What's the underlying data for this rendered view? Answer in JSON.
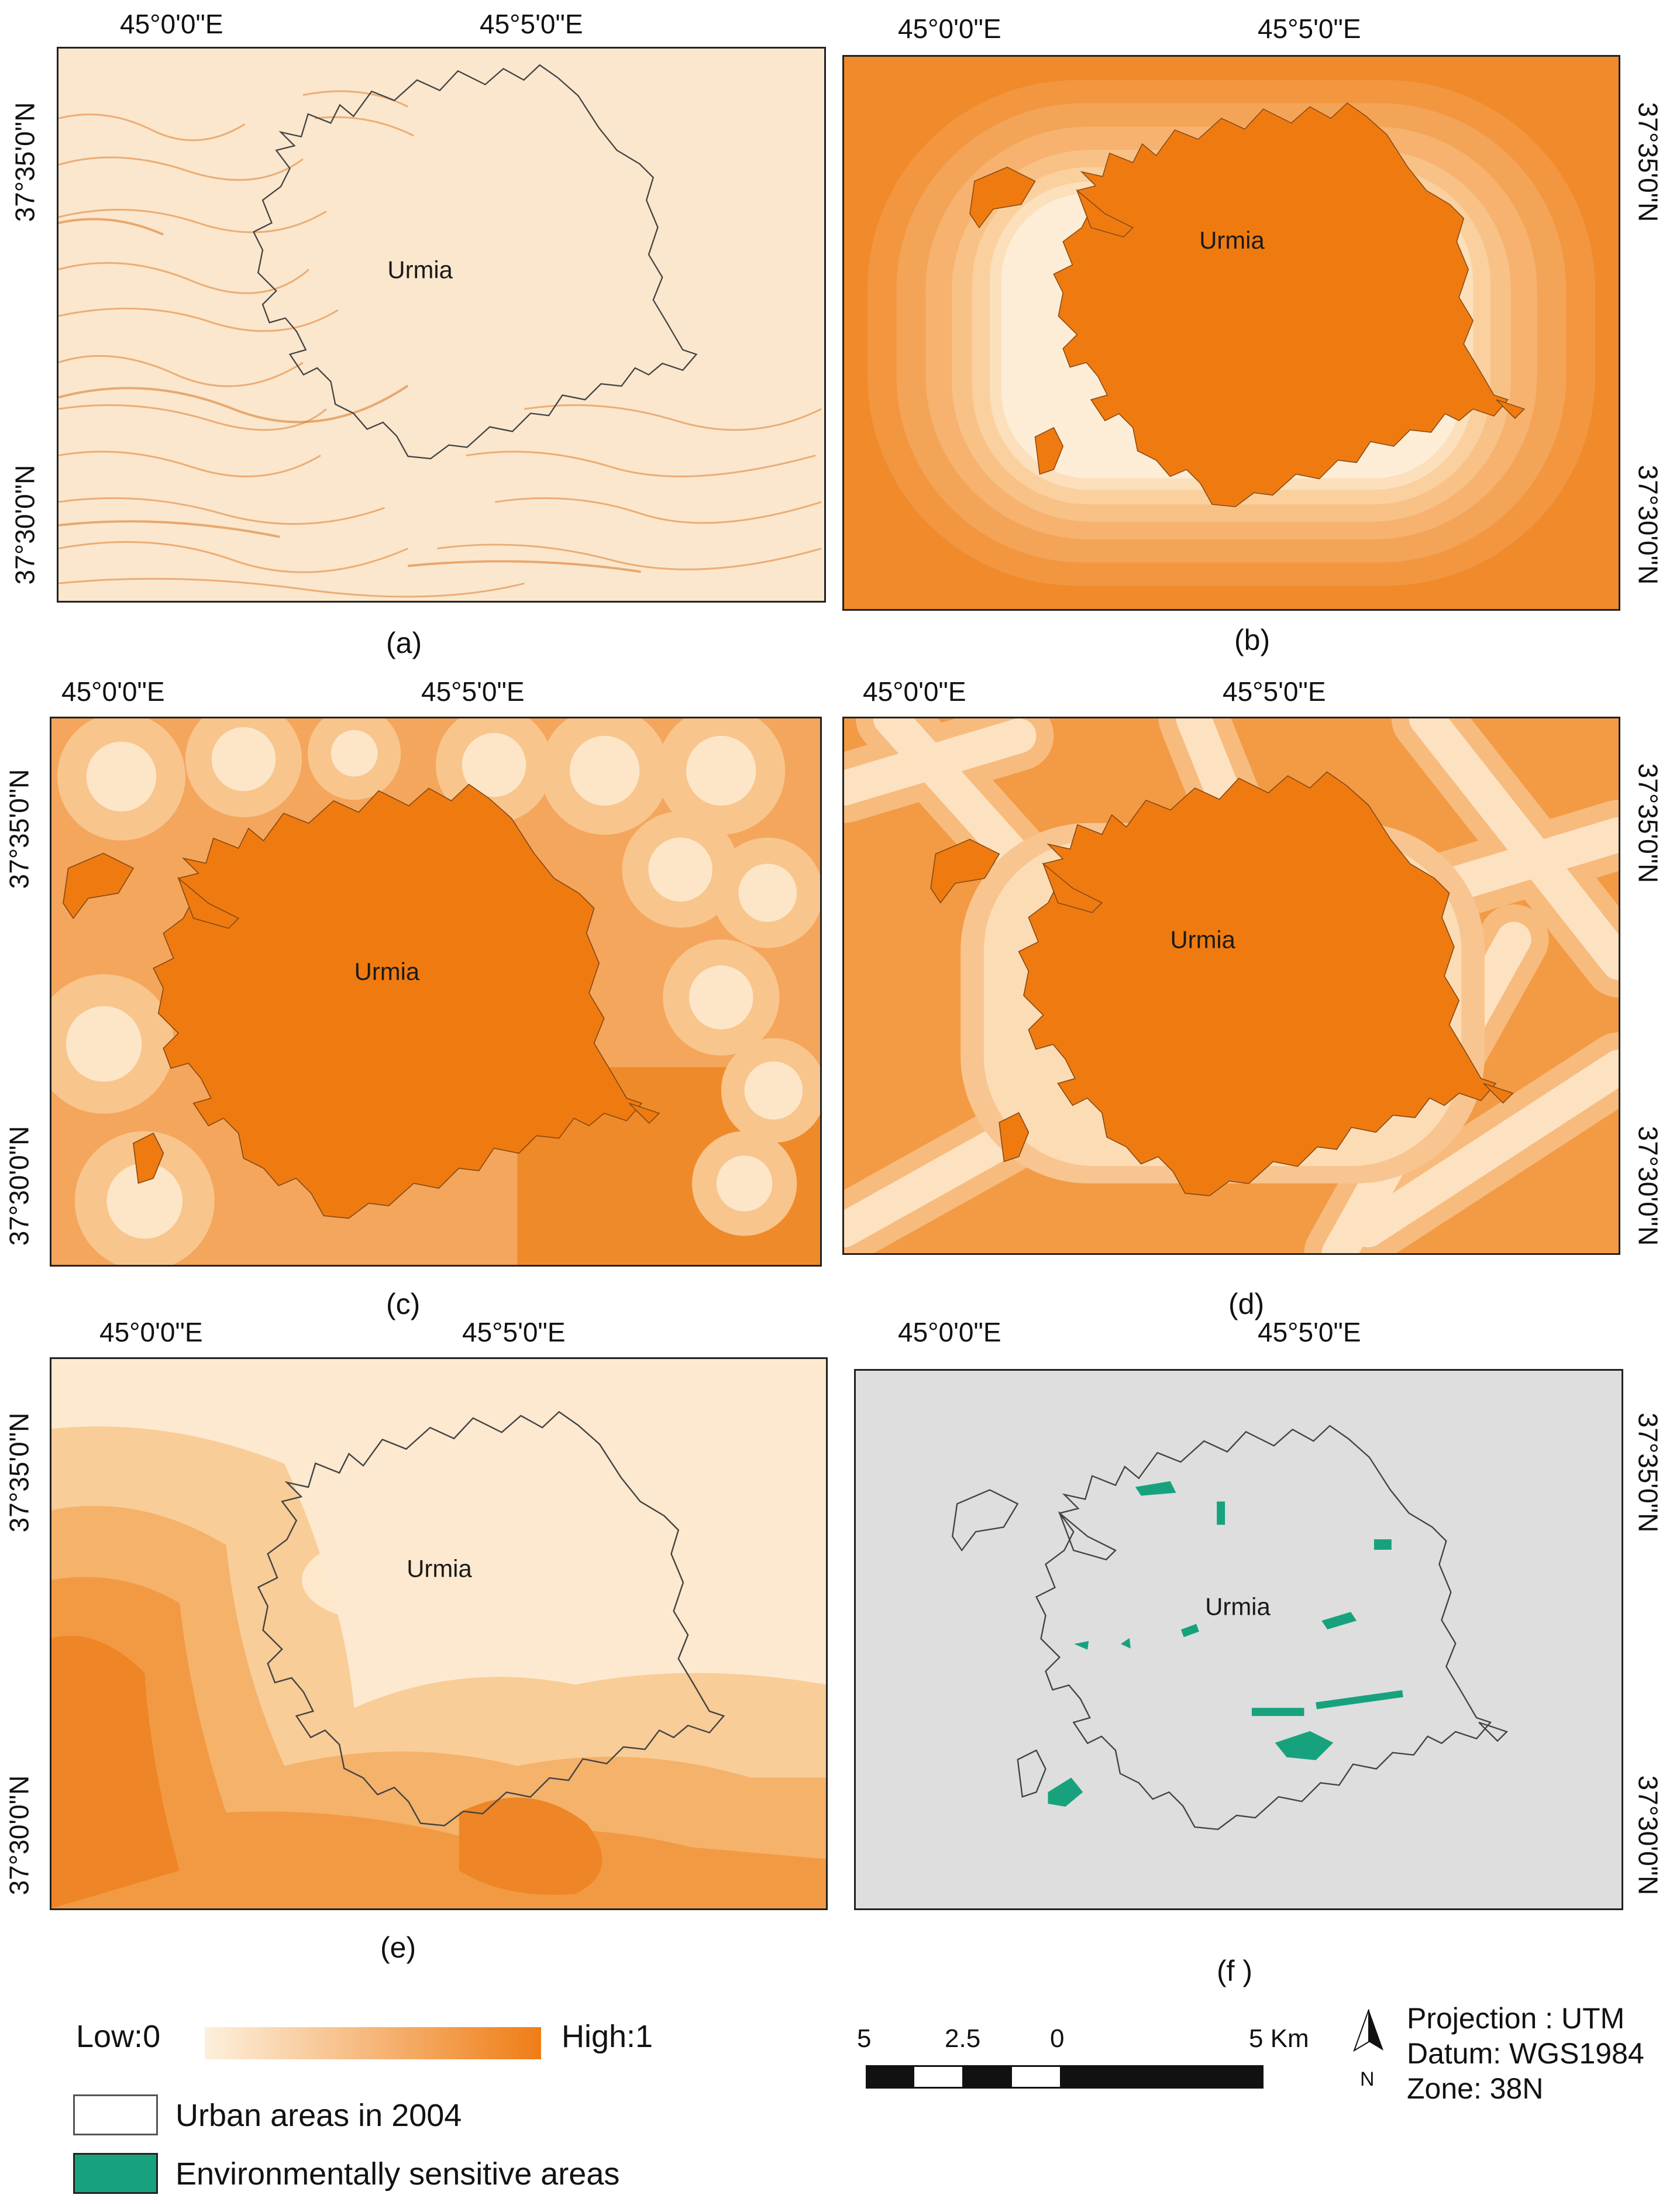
{
  "lon_ticks": [
    "45°0'0\"E",
    "45°5'0\"E"
  ],
  "lat_ticks": [
    "37°35'0\"N",
    "37°30'0\"N"
  ],
  "city_label": "Urmia",
  "panels": [
    {
      "id": "a",
      "caption": "(a)",
      "layer": "slope-texture",
      "outline_only": true
    },
    {
      "id": "b",
      "caption": "(b)",
      "layer": "distance-rings",
      "outline_only": false
    },
    {
      "id": "c",
      "caption": "(c)",
      "layer": "point-buffers",
      "outline_only": false
    },
    {
      "id": "d",
      "caption": "(d)",
      "layer": "road-buffers",
      "outline_only": false
    },
    {
      "id": "e",
      "caption": "(e)",
      "layer": "elevation-zones",
      "outline_only": true
    },
    {
      "id": "f",
      "caption": "(f )",
      "layer": "sensitive-areas",
      "outline_only": true
    }
  ],
  "legend": {
    "low_label": "Low:0",
    "high_label": "High:1",
    "urban_label": "Urban areas in 2004",
    "sensitive_label": "Environmentally sensitive areas"
  },
  "scale_bar": {
    "labels": [
      "5",
      "2.5",
      "0",
      "5 Km"
    ]
  },
  "map_info": {
    "projection": "Projection : UTM",
    "datum": "Datum: WGS1984",
    "zone": "Zone: 38N",
    "north_label": "N"
  },
  "colors": {
    "low": "#fbe6c8",
    "high": "#ef7d16",
    "urban_fill": "#ef7b10",
    "sensitive": "#17a27d",
    "grey_bg": "#dedede"
  }
}
